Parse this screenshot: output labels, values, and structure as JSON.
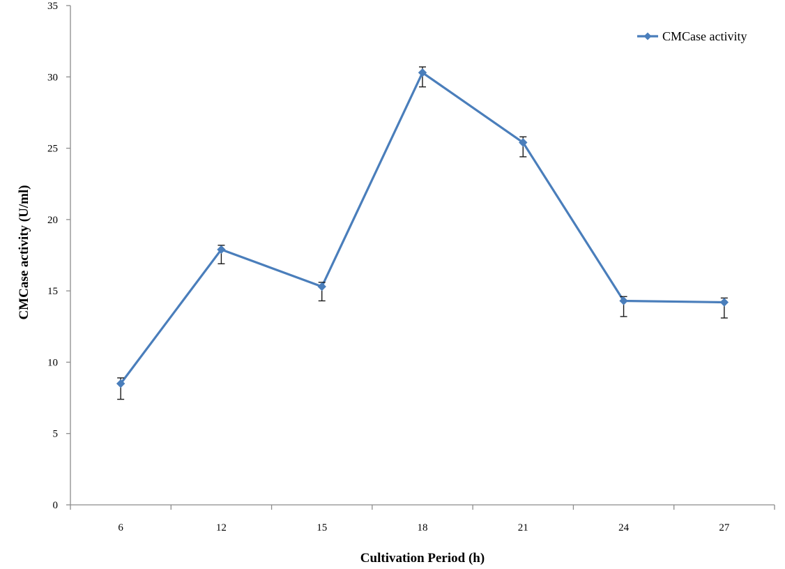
{
  "chart_data": {
    "type": "line",
    "title": "",
    "xlabel": "Cultivation Period (h)",
    "ylabel": "CMCase activity (U/ml)",
    "categories": [
      "6",
      "12",
      "15",
      "18",
      "21",
      "24",
      "27"
    ],
    "ylim": [
      0,
      35
    ],
    "yticks": [
      0,
      5,
      10,
      15,
      20,
      25,
      30,
      35
    ],
    "grid": false,
    "legend_position": "top-right",
    "series": [
      {
        "name": "CMCase activity",
        "color": "#4a7ebb",
        "marker": "diamond",
        "values": [
          8.5,
          17.9,
          15.3,
          30.3,
          25.4,
          14.3,
          14.2
        ],
        "error_low": [
          7.4,
          16.9,
          14.3,
          29.3,
          24.4,
          13.2,
          13.1
        ],
        "error_high": [
          8.9,
          18.2,
          15.6,
          30.7,
          25.8,
          14.6,
          14.5
        ]
      }
    ]
  }
}
